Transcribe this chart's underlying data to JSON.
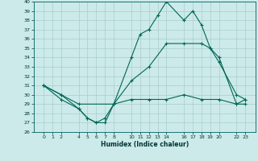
{
  "xlabel": "Humidex (Indice chaleur)",
  "background_color": "#cceaea",
  "grid_color": "#aacccc",
  "line_color": "#006655",
  "ylim": [
    26,
    40
  ],
  "yticks": [
    26,
    27,
    28,
    29,
    30,
    31,
    32,
    33,
    34,
    35,
    36,
    37,
    38,
    39,
    40
  ],
  "xticks": [
    0,
    1,
    2,
    4,
    5,
    6,
    7,
    8,
    10,
    11,
    12,
    13,
    14,
    16,
    17,
    18,
    19,
    20,
    22,
    23
  ],
  "line1_x": [
    0,
    2,
    4,
    5,
    6,
    7,
    8,
    10,
    11,
    12,
    13,
    14,
    16,
    17,
    18,
    19,
    20,
    22,
    23
  ],
  "line1_y": [
    31,
    30,
    28.5,
    27.5,
    27.0,
    27.0,
    29.0,
    34.0,
    36.5,
    37.0,
    38.5,
    40.0,
    38.0,
    39.0,
    37.5,
    35.0,
    33.5,
    30.0,
    29.5
  ],
  "line2_x": [
    0,
    2,
    4,
    8,
    10,
    12,
    14,
    16,
    18,
    19,
    20,
    22,
    23
  ],
  "line2_y": [
    31,
    30,
    29,
    29,
    31.5,
    33,
    35.5,
    35.5,
    35.5,
    35,
    34,
    29,
    29.5
  ],
  "line3_x": [
    0,
    2,
    4,
    5,
    6,
    7,
    8,
    10,
    12,
    14,
    16,
    18,
    20,
    22,
    23
  ],
  "line3_y": [
    31,
    29.5,
    28.5,
    27.5,
    27.0,
    27.5,
    29,
    29.5,
    29.5,
    29.5,
    30,
    29.5,
    29.5,
    29,
    29
  ]
}
